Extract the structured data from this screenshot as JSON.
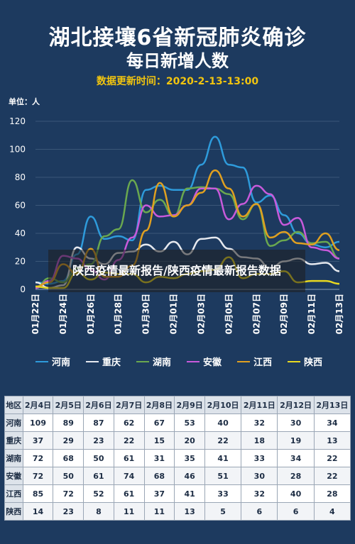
{
  "header": {
    "title": "湖北接壤6省新冠肺炎确诊",
    "subtitle": "每日新增人数",
    "update_time": "数据更新时间：2020-2-13-13:00"
  },
  "overlay_text": "陕西疫情最新报告/陕西疫情最新报告数据",
  "chart_data": {
    "type": "line",
    "title": "湖北接壤6省新冠肺炎确诊",
    "subtitle": "每日新增人数",
    "ylabel": "单位：人",
    "ylim": [
      0,
      120
    ],
    "yticks": [
      0,
      20,
      40,
      60,
      80,
      100,
      120
    ],
    "categories": [
      "01月22日",
      "01月23日",
      "01月24日",
      "01月25日",
      "01月26日",
      "01月27日",
      "01月28日",
      "01月29日",
      "01月30日",
      "01月31日",
      "02月01日",
      "02月02日",
      "02月03日",
      "02月04日",
      "02月05日",
      "02月06日",
      "02月07日",
      "02月08日",
      "02月09日",
      "02月10日",
      "02月11日",
      "02月12日",
      "02月13日"
    ],
    "xtick_labels": [
      "01月22日",
      "01月24日",
      "01月26日",
      "01月28日",
      "01月30日",
      "02月01日",
      "02月03日",
      "02月05日",
      "02月07日",
      "02月09日",
      "02月11日",
      "02月13日"
    ],
    "series": [
      {
        "name": "河南",
        "color": "#2e9bdb",
        "values": [
          5,
          4,
          6,
          25,
          52,
          36,
          38,
          35,
          71,
          74,
          71,
          71,
          89,
          109,
          89,
          87,
          62,
          67,
          53,
          40,
          32,
          30,
          34
        ]
      },
      {
        "name": "重庆",
        "color": "#e6e9ef",
        "values": [
          5,
          1,
          3,
          30,
          22,
          18,
          26,
          27,
          32,
          27,
          34,
          25,
          36,
          37,
          29,
          23,
          22,
          15,
          20,
          22,
          18,
          19,
          13
        ]
      },
      {
        "name": "湖南",
        "color": "#6aa84f",
        "values": [
          1,
          8,
          5,
          15,
          18,
          38,
          43,
          78,
          55,
          64,
          52,
          72,
          73,
          72,
          68,
          50,
          61,
          31,
          35,
          41,
          33,
          34,
          22
        ]
      },
      {
        "name": "安徽",
        "color": "#c85adb",
        "values": [
          1,
          6,
          24,
          22,
          14,
          7,
          21,
          37,
          60,
          52,
          53,
          60,
          72,
          72,
          50,
          61,
          74,
          68,
          46,
          51,
          30,
          28,
          22
        ]
      },
      {
        "name": "江西",
        "color": "#e0a020",
        "values": [
          2,
          5,
          18,
          11,
          29,
          9,
          9,
          17,
          42,
          76,
          52,
          60,
          69,
          85,
          72,
          52,
          61,
          37,
          41,
          33,
          32,
          40,
          28
        ]
      },
      {
        "name": "陕西",
        "color": "#e8d820",
        "values": [
          2,
          1,
          1,
          12,
          7,
          12,
          11,
          11,
          5,
          9,
          8,
          11,
          13,
          14,
          23,
          8,
          11,
          11,
          13,
          5,
          6,
          6,
          4
        ]
      }
    ],
    "legend_position": "bottom",
    "grid": true
  },
  "table": {
    "header": [
      "地区",
      "2月4日",
      "2月5日",
      "2月6日",
      "2月7日",
      "2月8日",
      "2月9日",
      "2月10日",
      "2月11日",
      "2月12日",
      "2月13日"
    ],
    "rows": [
      [
        "河南",
        "109",
        "89",
        "87",
        "62",
        "67",
        "53",
        "40",
        "32",
        "30",
        "34"
      ],
      [
        "重庆",
        "37",
        "29",
        "23",
        "22",
        "15",
        "20",
        "22",
        "18",
        "19",
        "13"
      ],
      [
        "湖南",
        "72",
        "68",
        "50",
        "61",
        "31",
        "35",
        "41",
        "33",
        "34",
        "22"
      ],
      [
        "安徽",
        "72",
        "50",
        "61",
        "74",
        "68",
        "46",
        "51",
        "30",
        "28",
        "22"
      ],
      [
        "江西",
        "85",
        "72",
        "52",
        "61",
        "37",
        "41",
        "33",
        "32",
        "40",
        "28"
      ],
      [
        "陕西",
        "14",
        "23",
        "8",
        "11",
        "11",
        "13",
        "5",
        "6",
        "6",
        "4"
      ]
    ]
  }
}
